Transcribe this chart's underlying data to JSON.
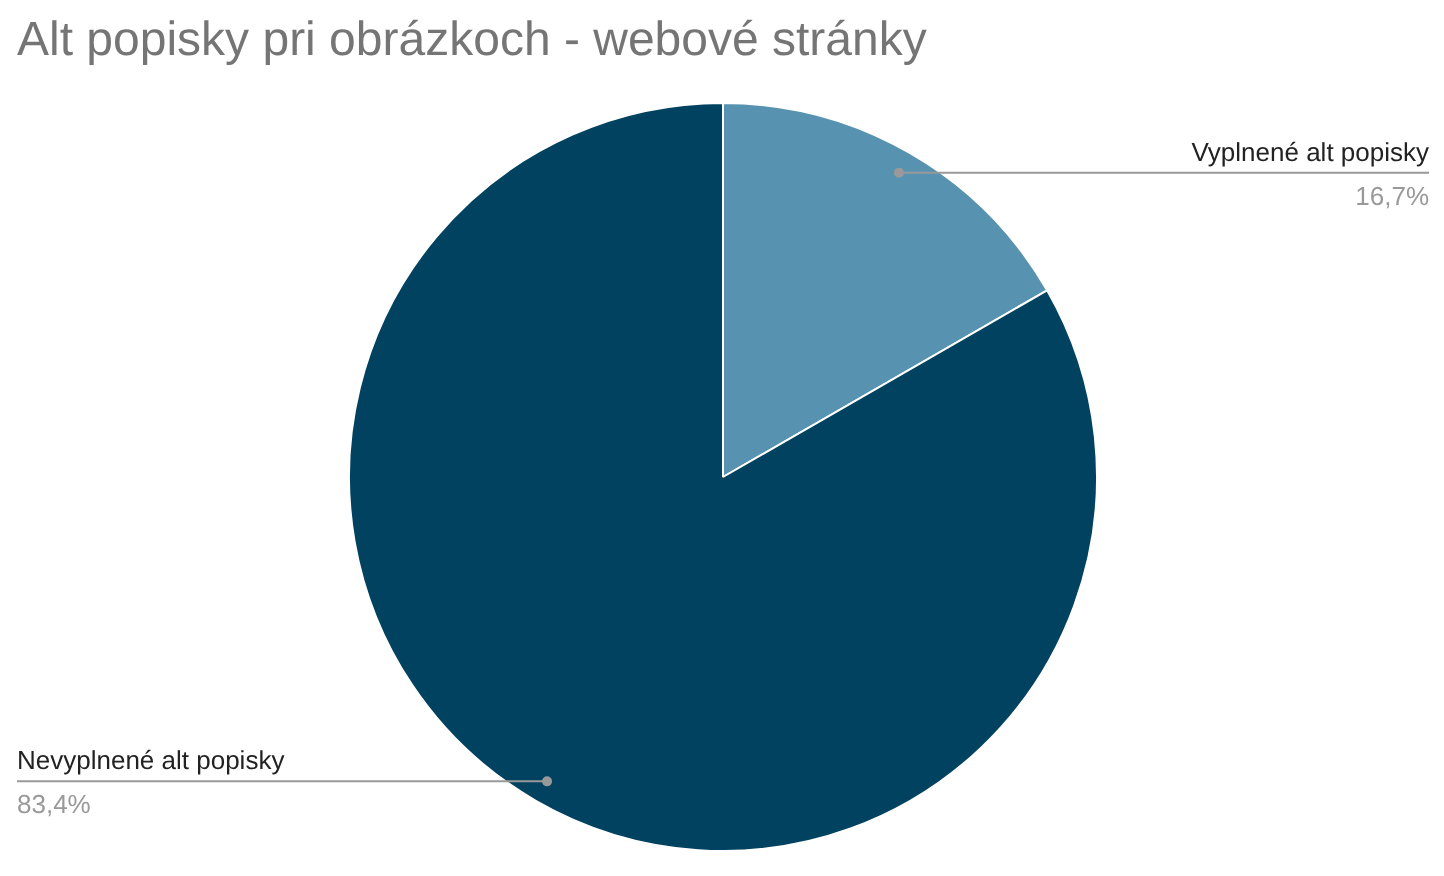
{
  "chart_data": {
    "type": "pie",
    "title": "Alt popisky pri obrázkoch - webové stránky",
    "categories": [
      "Vyplnené alt popisky",
      "Nevyplnené alt popisky"
    ],
    "values": [
      16.7,
      83.4
    ],
    "colors": [
      "#5793b0",
      "#00425f"
    ],
    "value_labels": [
      "16,7%",
      "83,4%"
    ]
  }
}
